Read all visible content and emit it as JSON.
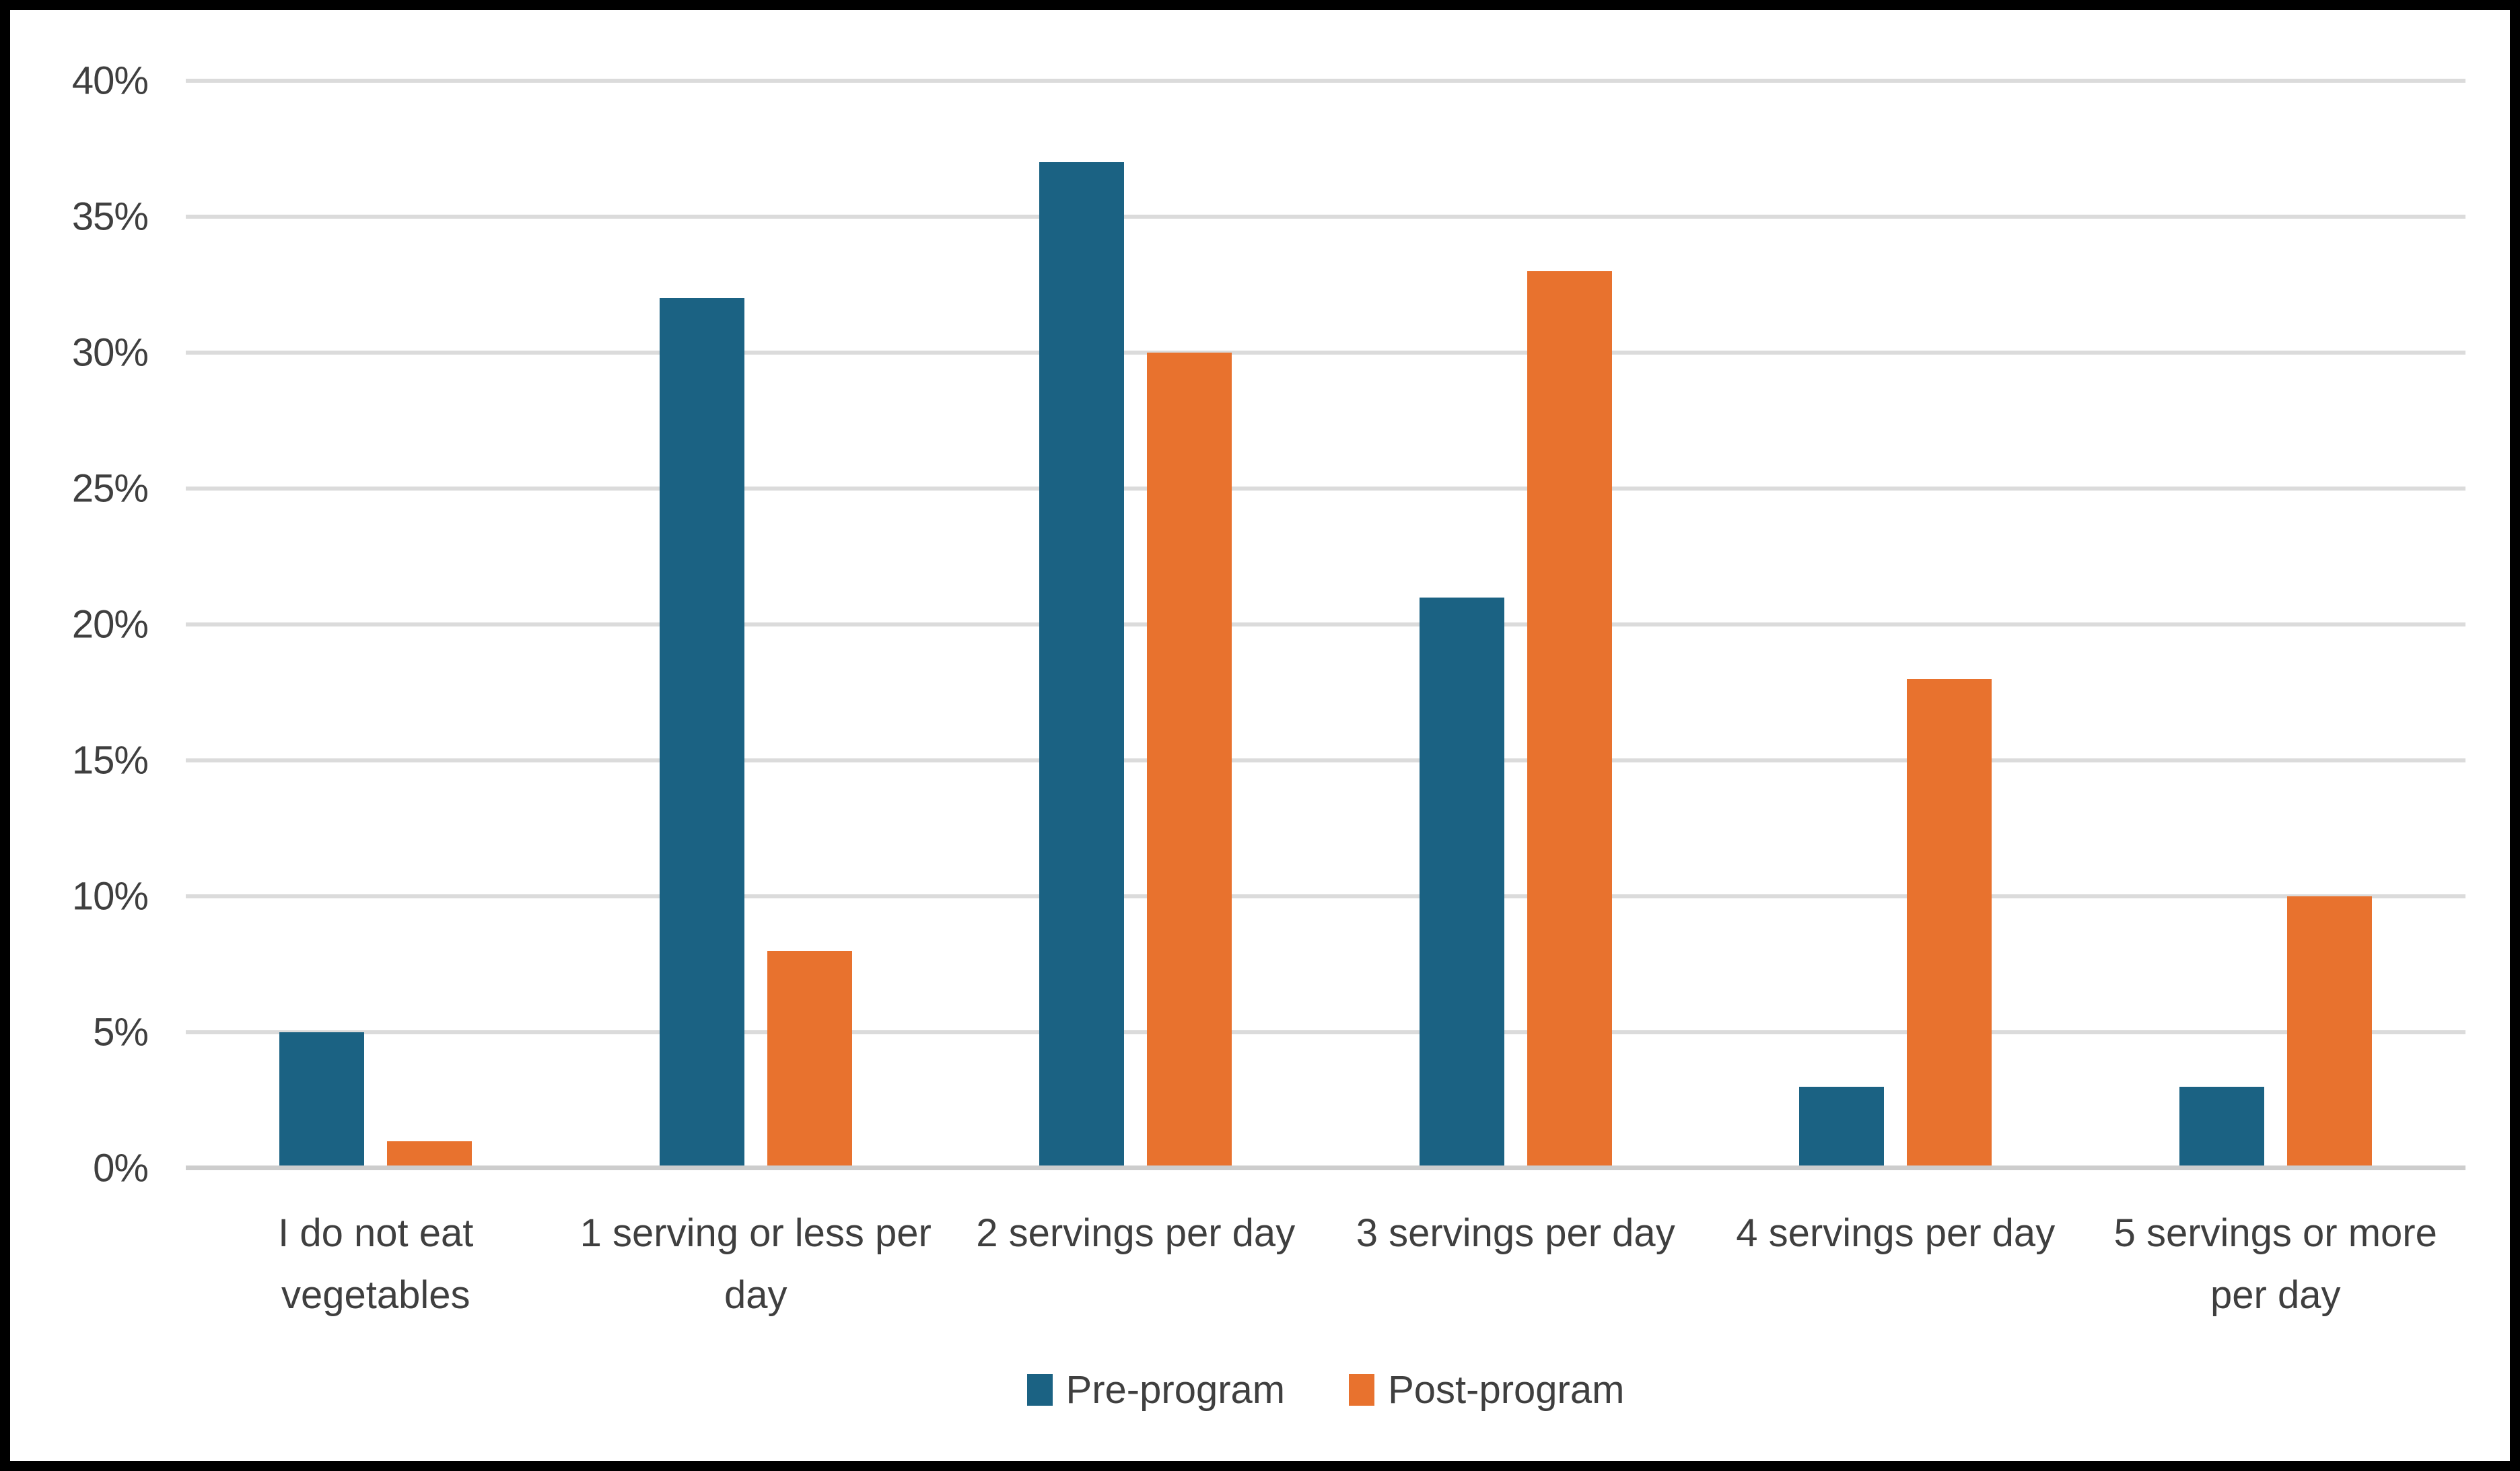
{
  "chart_data": {
    "type": "bar",
    "title": "",
    "xlabel": "",
    "ylabel": "",
    "categories": [
      "I do not eat\nvegetables",
      "1 serving or less per\nday",
      "2 servings per day",
      "3 servings per day",
      "4 servings per day",
      "5 servings or more\nper day"
    ],
    "series": [
      {
        "name": "Pre-program",
        "color": "#1B6283",
        "values": [
          5,
          32,
          37,
          21,
          3,
          3
        ]
      },
      {
        "name": "Post-program",
        "color": "#E8722E",
        "values": [
          1,
          8,
          30,
          33,
          18,
          10
        ]
      }
    ],
    "ylim": [
      0,
      40
    ],
    "ytick_step": 5,
    "ytick_labels": [
      "40%",
      "35%",
      "30%",
      "25%",
      "20%",
      "15%",
      "10%",
      "5%",
      "0%"
    ],
    "grid": true,
    "legend_position": "bottom"
  },
  "colors": {
    "gridline": "#DBDBDB",
    "axis_line": "#CDCDCD",
    "text": "#3F3F3F",
    "frame_border": "#000000",
    "background": "#FFFFFF"
  }
}
